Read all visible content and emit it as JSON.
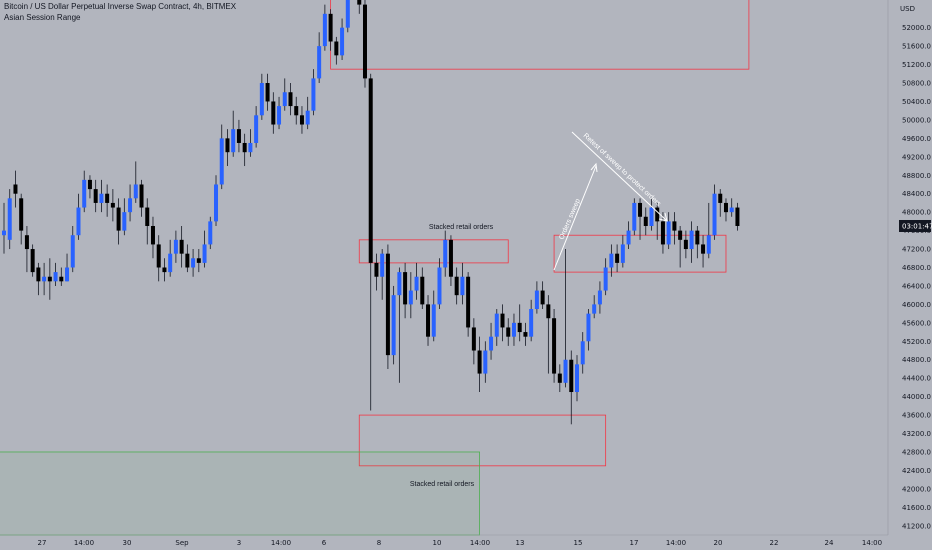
{
  "header": {
    "symbol_line": "Bitcoin / US Dollar Perpetual Inverse Swap Contract, 4h, BITMEX",
    "indicator": "Asian Session Range"
  },
  "axis": {
    "currency_label": "USD",
    "price_ticks": [
      "52000.0",
      "51600.0",
      "51200.0",
      "50800.0",
      "50400.0",
      "50000.0",
      "49600.0",
      "49200.0",
      "48800.0",
      "48400.0",
      "48000.0",
      "47600.0",
      "47200.0",
      "46800.0",
      "46400.0",
      "46000.0",
      "45600.0",
      "45200.0",
      "44800.0",
      "44400.0",
      "44000.0",
      "43600.0",
      "43200.0",
      "42800.0",
      "42400.0",
      "42000.0",
      "41600.0",
      "41200.0"
    ],
    "time_ticks": [
      "27",
      "14:00",
      "30",
      "Sep",
      "3",
      "14:00",
      "6",
      "8",
      "10",
      "14:00",
      "13",
      "15",
      "17",
      "14:00",
      "20",
      "22",
      "24",
      "14:00"
    ],
    "countdown": "03:01:47"
  },
  "annotations": {
    "zone_upper_label": "Stacked retail orders",
    "zone_lower_label": "Stacked retail orders",
    "sweep_label": "Orders sweep",
    "retest_label": "Retest of sweep to protect orders"
  },
  "colors": {
    "bg": "#b2b5be",
    "up": "#2962ff",
    "down": "#000000",
    "zone": "#f23645",
    "green_zone": "#4caf50",
    "countdown_bg": "#131722"
  },
  "chart_data": {
    "type": "candlestick",
    "title": "Bitcoin / US Dollar Perpetual Inverse Swap Contract, 4h, BITMEX",
    "ylim": [
      41000,
      52600
    ],
    "candles": [
      [
        47500,
        47600,
        48200,
        47100
      ],
      [
        47400,
        48300,
        48500,
        47200
      ],
      [
        48600,
        48400,
        48900,
        48100
      ],
      [
        48300,
        47600,
        48400,
        47300
      ],
      [
        47500,
        47200,
        47700,
        46700
      ],
      [
        47200,
        46700,
        47300,
        46600
      ],
      [
        46800,
        46500,
        46900,
        46200
      ],
      [
        46500,
        46600,
        46900,
        46200
      ],
      [
        46600,
        46500,
        47000,
        46100
      ],
      [
        46500,
        46700,
        46900,
        46400
      ],
      [
        46600,
        46500,
        46800,
        46400
      ],
      [
        46500,
        46800,
        47100,
        46500
      ],
      [
        46800,
        47500,
        47700,
        46700
      ],
      [
        47500,
        48100,
        48400,
        47400
      ],
      [
        48100,
        48700,
        48900,
        48000
      ],
      [
        48700,
        48500,
        48800,
        48300
      ],
      [
        48500,
        48200,
        48700,
        48000
      ],
      [
        48200,
        48400,
        48700,
        48000
      ],
      [
        48400,
        48200,
        48600,
        47900
      ],
      [
        48200,
        48100,
        48500,
        47800
      ],
      [
        48100,
        47600,
        48300,
        47300
      ],
      [
        47600,
        48000,
        48300,
        47500
      ],
      [
        48000,
        48300,
        48600,
        47800
      ],
      [
        48300,
        48600,
        49100,
        48200
      ],
      [
        48600,
        48100,
        48700,
        47900
      ],
      [
        48100,
        47700,
        48300,
        47300
      ],
      [
        47700,
        47300,
        47900,
        47000
      ],
      [
        47300,
        46800,
        47500,
        46500
      ],
      [
        46800,
        46700,
        47000,
        46500
      ],
      [
        46700,
        47100,
        47400,
        46600
      ],
      [
        47100,
        47400,
        47600,
        46900
      ],
      [
        47400,
        47100,
        47700,
        46800
      ],
      [
        47100,
        46800,
        47300,
        46700
      ],
      [
        46800,
        47000,
        47200,
        46600
      ],
      [
        47000,
        46900,
        47200,
        46700
      ],
      [
        46900,
        47300,
        47600,
        46800
      ],
      [
        47300,
        47800,
        47900,
        47200
      ],
      [
        47800,
        48600,
        48800,
        47700
      ],
      [
        48600,
        49600,
        49900,
        48500
      ],
      [
        49600,
        49300,
        49800,
        49000
      ],
      [
        49300,
        49800,
        50200,
        49200
      ],
      [
        49800,
        49500,
        50000,
        49300
      ],
      [
        49500,
        49300,
        49700,
        49000
      ],
      [
        49300,
        49500,
        49800,
        49200
      ],
      [
        49500,
        50100,
        50300,
        49400
      ],
      [
        50100,
        50800,
        51000,
        50000
      ],
      [
        50800,
        50400,
        51000,
        50200
      ],
      [
        50400,
        49900,
        50600,
        49700
      ],
      [
        49900,
        50300,
        50500,
        49800
      ],
      [
        50300,
        50600,
        50900,
        50200
      ],
      [
        50600,
        50300,
        50800,
        50100
      ],
      [
        50300,
        50100,
        50500,
        49900
      ],
      [
        50100,
        49900,
        50300,
        49700
      ],
      [
        49900,
        50200,
        50500,
        49800
      ],
      [
        50200,
        50900,
        51100,
        50100
      ],
      [
        50900,
        51600,
        51900,
        50800
      ],
      [
        51600,
        52300,
        52500,
        51500
      ],
      [
        52300,
        51700,
        52400,
        51500
      ],
      [
        51700,
        51400,
        51800,
        51200
      ],
      [
        51400,
        52000,
        52200,
        51300
      ],
      [
        52000,
        52800,
        53000,
        51900
      ],
      [
        52800,
        53300,
        53600,
        52700
      ],
      [
        53300,
        52500,
        53400,
        52300
      ],
      [
        52500,
        50900,
        52600,
        50700
      ],
      [
        50900,
        46900,
        51000,
        43700
      ],
      [
        46900,
        46600,
        47100,
        46300
      ],
      [
        46600,
        47100,
        47200,
        46100
      ],
      [
        47100,
        44900,
        47300,
        44600
      ],
      [
        44900,
        46200,
        46400,
        44700
      ],
      [
        46200,
        46700,
        46800,
        44300
      ],
      [
        46700,
        46000,
        46900,
        45700
      ],
      [
        46000,
        46300,
        46700,
        45700
      ],
      [
        46300,
        46600,
        46900,
        46100
      ],
      [
        46600,
        46000,
        46800,
        45900
      ],
      [
        46000,
        45300,
        46200,
        45100
      ],
      [
        45300,
        46000,
        46300,
        45200
      ],
      [
        46000,
        46800,
        47000,
        45900
      ],
      [
        46800,
        47400,
        47600,
        46600
      ],
      [
        47400,
        46600,
        47500,
        46400
      ],
      [
        46600,
        46200,
        46800,
        46000
      ],
      [
        46200,
        46600,
        46900,
        46000
      ],
      [
        46600,
        45500,
        46700,
        45300
      ],
      [
        45500,
        45000,
        45700,
        44700
      ],
      [
        45000,
        44500,
        45300,
        44100
      ],
      [
        44500,
        45000,
        45200,
        44300
      ],
      [
        45000,
        45300,
        45600,
        44800
      ],
      [
        45300,
        45800,
        45900,
        45100
      ],
      [
        45800,
        45500,
        46000,
        45200
      ],
      [
        45500,
        45300,
        45700,
        45100
      ],
      [
        45300,
        45600,
        45800,
        45100
      ],
      [
        45600,
        45400,
        46000,
        45200
      ],
      [
        45400,
        45300,
        45600,
        45100
      ],
      [
        45300,
        45900,
        46100,
        45200
      ],
      [
        45900,
        46300,
        46500,
        45800
      ],
      [
        46300,
        46000,
        46500,
        45900
      ],
      [
        46000,
        45700,
        46200,
        44500
      ],
      [
        45700,
        44500,
        45900,
        44300
      ],
      [
        44500,
        44300,
        44700,
        44100
      ],
      [
        44300,
        44800,
        47200,
        44200
      ],
      [
        44800,
        44100,
        45000,
        43400
      ],
      [
        44100,
        44700,
        44900,
        43900
      ],
      [
        44700,
        45200,
        45400,
        44500
      ],
      [
        45200,
        45800,
        45900,
        45000
      ],
      [
        45800,
        46000,
        46200,
        45700
      ],
      [
        46000,
        46300,
        46500,
        45800
      ],
      [
        46300,
        46800,
        47000,
        46200
      ],
      [
        46800,
        47100,
        47300,
        46600
      ],
      [
        47100,
        46900,
        47300,
        46700
      ],
      [
        46900,
        47300,
        47500,
        46800
      ],
      [
        47300,
        47600,
        47800,
        47200
      ],
      [
        47600,
        48200,
        48300,
        47500
      ],
      [
        48200,
        47900,
        48300,
        47400
      ],
      [
        47900,
        47700,
        48100,
        47500
      ],
      [
        47700,
        48100,
        48300,
        47600
      ],
      [
        48100,
        47800,
        48200,
        47400
      ],
      [
        47800,
        47300,
        48000,
        47100
      ],
      [
        47300,
        47800,
        48000,
        47200
      ],
      [
        47800,
        47600,
        48000,
        47300
      ],
      [
        47600,
        47400,
        47700,
        46800
      ],
      [
        47400,
        47200,
        47600,
        47000
      ],
      [
        47200,
        47600,
        47800,
        46900
      ],
      [
        47600,
        47300,
        47700,
        47000
      ],
      [
        47300,
        47100,
        47500,
        46800
      ],
      [
        47100,
        47500,
        48200,
        47000
      ],
      [
        47500,
        48400,
        48600,
        47400
      ],
      [
        48400,
        48200,
        48500,
        47900
      ],
      [
        48200,
        48000,
        48300,
        47800
      ],
      [
        48000,
        48100,
        48300,
        47900
      ],
      [
        48100,
        47700,
        48200,
        47600
      ]
    ],
    "zones": [
      {
        "label": "",
        "top": 52800,
        "bottom": 51100,
        "start": 57,
        "end": 130,
        "color": "#f23645"
      },
      {
        "label": "Stacked retail orders",
        "top": 47400,
        "bottom": 46900,
        "start": 62,
        "end": 88,
        "color": "#f23645"
      },
      {
        "label": "",
        "top": 47500,
        "bottom": 46700,
        "start": 96,
        "end": 126,
        "color": "#f23645"
      },
      {
        "label": "Stacked retail orders",
        "top": 43600,
        "bottom": 42500,
        "start": 62,
        "end": 105,
        "color": "#f23645"
      },
      {
        "label": "",
        "top": 42800,
        "bottom": 41000,
        "start": -5,
        "end": 83,
        "color": "#4caf50"
      }
    ]
  }
}
